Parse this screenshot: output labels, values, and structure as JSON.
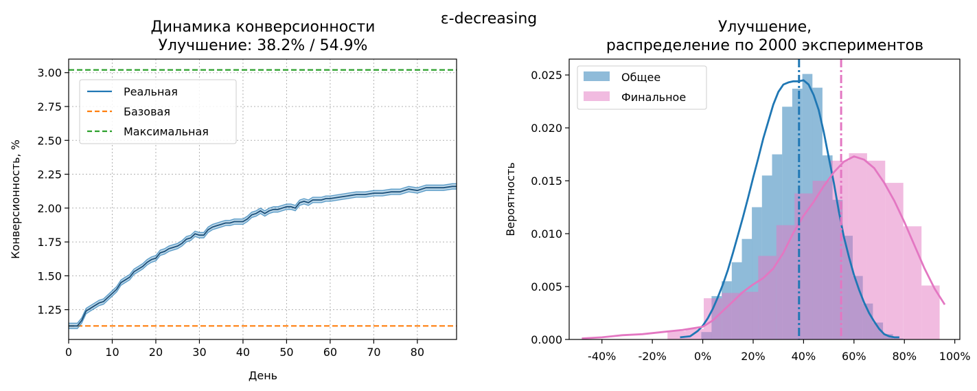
{
  "suptitle": "ε-decreasing",
  "chart_data": [
    {
      "type": "line",
      "title_line1": "Динамика конверсионности",
      "title_line2": "Улучшение: 38.2% / 54.9%",
      "xlabel": "День",
      "ylabel": "Конверсионность, %",
      "xlim": [
        0,
        89
      ],
      "ylim": [
        1.03,
        3.1
      ],
      "xticks": [
        0,
        10,
        20,
        30,
        40,
        50,
        60,
        70,
        80
      ],
      "yticks": [
        1.25,
        1.5,
        1.75,
        2.0,
        2.25,
        2.5,
        2.75,
        3.0
      ],
      "ytick_labels": [
        "1.25",
        "1.50",
        "1.75",
        "2.00",
        "2.25",
        "2.50",
        "2.75",
        "3.00"
      ],
      "grid": true,
      "legend_position": "upper-left",
      "series": [
        {
          "name": "Реальная",
          "style": "solid",
          "color": "#1f77b4",
          "band_halfwidth": 0.02,
          "x": [
            0,
            2,
            3,
            4,
            5,
            6,
            7,
            8,
            9,
            10,
            11,
            12,
            13,
            14,
            15,
            16,
            17,
            18,
            19,
            20,
            21,
            22,
            23,
            24,
            25,
            26,
            27,
            28,
            29,
            30,
            31,
            32,
            33,
            34,
            35,
            36,
            37,
            38,
            39,
            40,
            41,
            42,
            43,
            44,
            45,
            46,
            47,
            48,
            49,
            50,
            51,
            52,
            53,
            54,
            55,
            56,
            57,
            58,
            59,
            60,
            62,
            64,
            66,
            68,
            70,
            72,
            74,
            76,
            78,
            80,
            82,
            84,
            86,
            88,
            89
          ],
          "values": [
            1.13,
            1.13,
            1.17,
            1.24,
            1.26,
            1.28,
            1.3,
            1.31,
            1.34,
            1.37,
            1.4,
            1.45,
            1.47,
            1.49,
            1.53,
            1.55,
            1.57,
            1.6,
            1.62,
            1.63,
            1.67,
            1.68,
            1.7,
            1.71,
            1.72,
            1.74,
            1.77,
            1.78,
            1.81,
            1.8,
            1.8,
            1.84,
            1.86,
            1.87,
            1.88,
            1.89,
            1.89,
            1.9,
            1.9,
            1.9,
            1.92,
            1.95,
            1.96,
            1.98,
            1.96,
            1.98,
            1.99,
            1.99,
            2.0,
            2.01,
            2.01,
            2.0,
            2.04,
            2.05,
            2.04,
            2.06,
            2.06,
            2.06,
            2.07,
            2.07,
            2.08,
            2.09,
            2.1,
            2.1,
            2.11,
            2.11,
            2.12,
            2.12,
            2.14,
            2.13,
            2.15,
            2.15,
            2.15,
            2.16,
            2.16
          ]
        },
        {
          "name": "Базовая",
          "style": "dashed",
          "color": "#ff7f0e",
          "y": 1.13
        },
        {
          "name": "Максимальная",
          "style": "dashed",
          "color": "#2ca02c",
          "y": 3.02
        }
      ]
    },
    {
      "type": "histogram",
      "title_line1": "Улучшение,",
      "title_line2": "распределение по 2000 экспериментов",
      "xlabel": "",
      "ylabel": "Вероятность",
      "xlim": [
        -53,
        102
      ],
      "ylim": [
        0,
        0.0265
      ],
      "xticks": [
        -40,
        -20,
        0,
        20,
        40,
        60,
        80,
        100
      ],
      "xtick_labels": [
        "-40%",
        "-20%",
        "0%",
        "20%",
        "40%",
        "60%",
        "80%",
        "100%"
      ],
      "yticks": [
        0,
        0.005,
        0.01,
        0.015,
        0.02,
        0.025
      ],
      "ytick_labels": [
        "0.000",
        "0.005",
        "0.010",
        "0.015",
        "0.020",
        "0.025"
      ],
      "grid": false,
      "legend_position": "upper-left",
      "series": [
        {
          "name": "Общее",
          "color": "#1f77b4",
          "bin_edges": [
            -0.6,
            3.5,
            7.5,
            11.5,
            15.5,
            19.5,
            23.5,
            27.5,
            31.5,
            35.5,
            39.5,
            43.5,
            47.5,
            51.5,
            55.5,
            59.5,
            63.5,
            67.5,
            71.5,
            75.5,
            79.5
          ],
          "density": [
            0.0007,
            0.0041,
            0.0055,
            0.0073,
            0.0095,
            0.0125,
            0.0155,
            0.0175,
            0.022,
            0.0237,
            0.0251,
            0.0238,
            0.0174,
            0.0132,
            0.0098,
            0.006,
            0.0034,
            0.0016,
            0.0005,
            0.0001
          ],
          "kde_x": [
            -9,
            -5,
            -2,
            0,
            2,
            4,
            6,
            8,
            10,
            12,
            14,
            16,
            18,
            20,
            22,
            24,
            26,
            28,
            30,
            32,
            34,
            36,
            38,
            40,
            42,
            44,
            46,
            48,
            50,
            52,
            54,
            56,
            58,
            60,
            62,
            64,
            66,
            68,
            70,
            72,
            74,
            76,
            78
          ],
          "kde_y": [
            0.0002,
            0.0003,
            0.0008,
            0.0013,
            0.002,
            0.0029,
            0.004,
            0.0052,
            0.0066,
            0.0082,
            0.0099,
            0.0116,
            0.0134,
            0.0153,
            0.0171,
            0.019,
            0.0206,
            0.0222,
            0.0234,
            0.0241,
            0.0243,
            0.0244,
            0.0244,
            0.0245,
            0.0241,
            0.0231,
            0.0217,
            0.0196,
            0.0172,
            0.0148,
            0.0121,
            0.0097,
            0.0078,
            0.0061,
            0.0047,
            0.0035,
            0.0025,
            0.0017,
            0.001,
            0.0005,
            0.0003,
            0.0002,
            0.0002
          ],
          "mean": 38.2
        },
        {
          "name": "Финальное",
          "color": "#e377c2",
          "bin_edges": [
            -14,
            -6.8,
            0.4,
            7.6,
            14.8,
            22,
            29.2,
            36.4,
            43.6,
            50.8,
            58,
            65.2,
            72.4,
            79.6,
            86.8,
            94
          ],
          "density": [
            0.0008,
            0.001,
            0.0039,
            0.0044,
            0.0045,
            0.0079,
            0.0108,
            0.0138,
            0.015,
            0.0169,
            0.0176,
            0.0169,
            0.0148,
            0.0107,
            0.0051
          ],
          "kde_x": [
            -48,
            -40,
            -32,
            -24,
            -16,
            -8,
            0,
            4,
            8,
            12,
            16,
            20,
            24,
            28,
            32,
            36,
            40,
            44,
            48,
            52,
            56,
            60,
            64,
            68,
            72,
            76,
            80,
            84,
            88,
            92,
            96
          ],
          "kde_y": [
            0.0001,
            0.0002,
            0.0004,
            0.0005,
            0.0007,
            0.0009,
            0.0012,
            0.0018,
            0.0027,
            0.0036,
            0.0045,
            0.0052,
            0.0058,
            0.0067,
            0.0082,
            0.0101,
            0.0117,
            0.013,
            0.0145,
            0.0158,
            0.0168,
            0.0173,
            0.017,
            0.0162,
            0.0148,
            0.0131,
            0.0111,
            0.0089,
            0.0067,
            0.0048,
            0.0033
          ],
          "mean": 54.9
        }
      ]
    }
  ]
}
